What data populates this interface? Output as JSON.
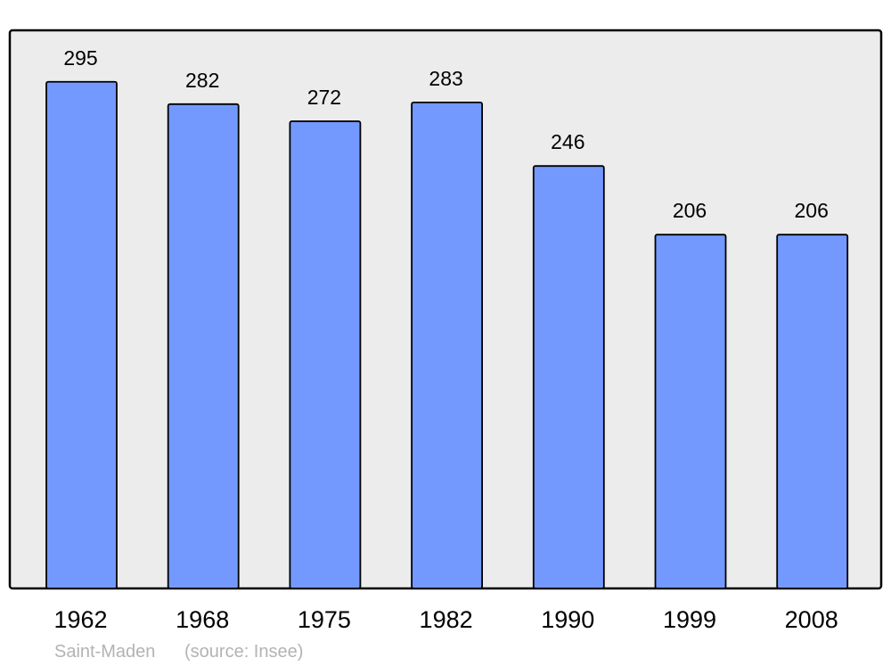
{
  "chart_data": {
    "type": "bar",
    "categories": [
      "1962",
      "1968",
      "1975",
      "1982",
      "1990",
      "1999",
      "2008"
    ],
    "values": [
      295,
      282,
      272,
      283,
      246,
      206,
      206
    ],
    "title": "",
    "xlabel": "",
    "ylabel": "",
    "ylim": [
      0,
      325
    ],
    "grid": false,
    "data_labels": true,
    "colors": {
      "bar": "#7399ff",
      "background": "#ececec",
      "border": "#000000"
    }
  },
  "footer": {
    "place": "Saint-Maden",
    "source": "(source: Insee)"
  }
}
